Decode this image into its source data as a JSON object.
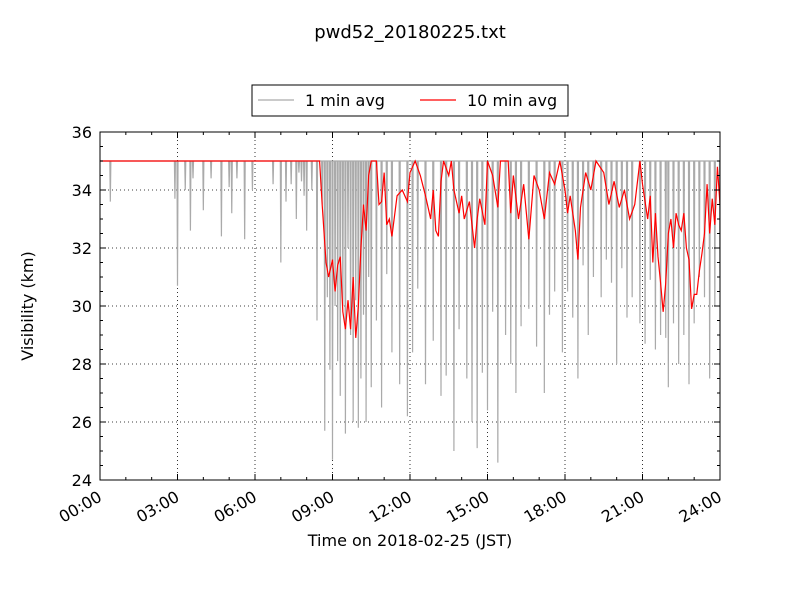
{
  "chart_data": {
    "type": "line",
    "title": "pwd52_20180225.txt",
    "xlabel": "Time on 2018-02-25 (JST)",
    "ylabel": "Visibility (km)",
    "xlim": [
      0,
      24
    ],
    "ylim": [
      24,
      36
    ],
    "x_ticks": [
      {
        "value": 0,
        "label": "00:00"
      },
      {
        "value": 3,
        "label": "03:00"
      },
      {
        "value": 6,
        "label": "06:00"
      },
      {
        "value": 9,
        "label": "09:00"
      },
      {
        "value": 12,
        "label": "12:00"
      },
      {
        "value": 15,
        "label": "15:00"
      },
      {
        "value": 18,
        "label": "18:00"
      },
      {
        "value": 21,
        "label": "21:00"
      },
      {
        "value": 24,
        "label": "24:00"
      }
    ],
    "y_ticks": [
      {
        "value": 24,
        "label": "24"
      },
      {
        "value": 26,
        "label": "26"
      },
      {
        "value": 28,
        "label": "28"
      },
      {
        "value": 30,
        "label": "30"
      },
      {
        "value": 32,
        "label": "32"
      },
      {
        "value": 34,
        "label": "34"
      },
      {
        "value": 36,
        "label": "36"
      }
    ],
    "grid": true,
    "legend": {
      "placement": "top-center-outside",
      "columns": 2
    },
    "series": [
      {
        "name": "1 min avg",
        "color": "#aaaaaa",
        "dips": [
          [
            0.4,
            33.6
          ],
          [
            2.9,
            33.7
          ],
          [
            3.0,
            30.7
          ],
          [
            3.3,
            34.0
          ],
          [
            3.5,
            32.6
          ],
          [
            3.6,
            34.4
          ],
          [
            4.0,
            33.3
          ],
          [
            4.3,
            34.4
          ],
          [
            4.7,
            32.4
          ],
          [
            5.0,
            34.1
          ],
          [
            5.1,
            33.2
          ],
          [
            5.3,
            34.4
          ],
          [
            5.6,
            32.3
          ],
          [
            5.9,
            34.0
          ],
          [
            6.7,
            34.2
          ],
          [
            7.0,
            31.5
          ],
          [
            7.2,
            33.6
          ],
          [
            7.4,
            34.2
          ],
          [
            7.6,
            33.0
          ],
          [
            7.7,
            34.6
          ],
          [
            7.8,
            34.3
          ],
          [
            7.9,
            33.8
          ],
          [
            8.0,
            32.6
          ],
          [
            8.2,
            34.0
          ],
          [
            8.4,
            29.5
          ],
          [
            8.6,
            33.5
          ],
          [
            8.7,
            25.7
          ],
          [
            8.8,
            30.3
          ],
          [
            8.9,
            27.8
          ],
          [
            9.0,
            24.7
          ],
          [
            9.1,
            30.0
          ],
          [
            9.2,
            28.1
          ],
          [
            9.3,
            26.9
          ],
          [
            9.4,
            30.0
          ],
          [
            9.5,
            25.6
          ],
          [
            9.6,
            32.0
          ],
          [
            9.7,
            29.0
          ],
          [
            9.8,
            26.0
          ],
          [
            9.9,
            30.2
          ],
          [
            10.0,
            25.8
          ],
          [
            10.1,
            27.5
          ],
          [
            10.2,
            29.7
          ],
          [
            10.3,
            26.0
          ],
          [
            10.4,
            31.0
          ],
          [
            10.5,
            27.2
          ],
          [
            10.7,
            29.5
          ],
          [
            10.9,
            26.5
          ],
          [
            11.1,
            31.1
          ],
          [
            11.3,
            28.4
          ],
          [
            11.6,
            27.3
          ],
          [
            11.9,
            26.2
          ],
          [
            12.1,
            28.4
          ],
          [
            12.3,
            30.6
          ],
          [
            12.6,
            27.3
          ],
          [
            12.9,
            28.8
          ],
          [
            13.2,
            26.9
          ],
          [
            13.4,
            27.6
          ],
          [
            13.7,
            25.0
          ],
          [
            13.9,
            29.2
          ],
          [
            14.2,
            27.5
          ],
          [
            14.4,
            26.0
          ],
          [
            14.6,
            25.1
          ],
          [
            14.8,
            27.7
          ],
          [
            15.0,
            26.4
          ],
          [
            15.2,
            29.8
          ],
          [
            15.4,
            24.6
          ],
          [
            15.7,
            29.0
          ],
          [
            15.9,
            28.0
          ],
          [
            16.1,
            27.0
          ],
          [
            16.3,
            29.3
          ],
          [
            16.6,
            29.9
          ],
          [
            16.9,
            28.6
          ],
          [
            17.2,
            27.0
          ],
          [
            17.4,
            29.7
          ],
          [
            17.6,
            30.5
          ],
          [
            17.9,
            28.4
          ],
          [
            18.1,
            30.5
          ],
          [
            18.3,
            29.6
          ],
          [
            18.5,
            27.5
          ],
          [
            18.7,
            31.4
          ],
          [
            18.9,
            29.0
          ],
          [
            19.1,
            31.0
          ],
          [
            19.4,
            30.3
          ],
          [
            19.6,
            31.6
          ],
          [
            19.8,
            30.8
          ],
          [
            20.0,
            28.0
          ],
          [
            20.2,
            31.3
          ],
          [
            20.4,
            29.6
          ],
          [
            20.6,
            30.3
          ],
          [
            20.9,
            29.4
          ],
          [
            21.1,
            28.7
          ],
          [
            21.3,
            30.9
          ],
          [
            21.5,
            28.5
          ],
          [
            21.7,
            29.0
          ],
          [
            21.9,
            28.9
          ],
          [
            22.0,
            27.2
          ],
          [
            22.2,
            29.4
          ],
          [
            22.4,
            28.0
          ],
          [
            22.6,
            29.0
          ],
          [
            22.8,
            27.3
          ],
          [
            23.0,
            29.4
          ],
          [
            23.2,
            31.0
          ],
          [
            23.4,
            30.3
          ],
          [
            23.6,
            27.5
          ],
          [
            23.8,
            30.0
          ],
          [
            24.0,
            31.0
          ]
        ]
      },
      {
        "name": "10 min avg",
        "color": "#ff0000",
        "points": [
          [
            0,
            35.0
          ],
          [
            8.5,
            35.0
          ],
          [
            8.6,
            33.5
          ],
          [
            8.75,
            31.5
          ],
          [
            8.85,
            31.0
          ],
          [
            9.0,
            31.6
          ],
          [
            9.1,
            30.5
          ],
          [
            9.2,
            31.4
          ],
          [
            9.3,
            31.7
          ],
          [
            9.4,
            29.8
          ],
          [
            9.5,
            29.2
          ],
          [
            9.6,
            30.2
          ],
          [
            9.7,
            29.2
          ],
          [
            9.8,
            31.0
          ],
          [
            9.9,
            28.9
          ],
          [
            10.0,
            30.0
          ],
          [
            10.1,
            32.0
          ],
          [
            10.2,
            33.5
          ],
          [
            10.3,
            32.6
          ],
          [
            10.4,
            34.5
          ],
          [
            10.5,
            35.0
          ],
          [
            10.7,
            35.0
          ],
          [
            10.8,
            33.5
          ],
          [
            10.9,
            33.6
          ],
          [
            11.0,
            34.6
          ],
          [
            11.1,
            32.8
          ],
          [
            11.2,
            33.0
          ],
          [
            11.3,
            32.4
          ],
          [
            11.5,
            33.8
          ],
          [
            11.7,
            34.0
          ],
          [
            11.9,
            33.6
          ],
          [
            12.0,
            34.6
          ],
          [
            12.2,
            35.0
          ],
          [
            12.4,
            34.5
          ],
          [
            12.6,
            33.8
          ],
          [
            12.8,
            33.0
          ],
          [
            12.9,
            34.0
          ],
          [
            13.0,
            32.6
          ],
          [
            13.1,
            32.4
          ],
          [
            13.2,
            34.3
          ],
          [
            13.3,
            35.0
          ],
          [
            13.5,
            34.5
          ],
          [
            13.6,
            35.0
          ],
          [
            13.7,
            34.0
          ],
          [
            13.9,
            33.2
          ],
          [
            14.0,
            33.8
          ],
          [
            14.1,
            33.0
          ],
          [
            14.3,
            33.6
          ],
          [
            14.5,
            32.0
          ],
          [
            14.6,
            33.0
          ],
          [
            14.7,
            33.7
          ],
          [
            14.9,
            32.8
          ],
          [
            15.0,
            35.0
          ],
          [
            15.2,
            34.5
          ],
          [
            15.4,
            33.4
          ],
          [
            15.5,
            35.0
          ],
          [
            15.8,
            35.0
          ],
          [
            15.9,
            33.2
          ],
          [
            16.0,
            34.5
          ],
          [
            16.2,
            33.0
          ],
          [
            16.4,
            34.2
          ],
          [
            16.6,
            32.3
          ],
          [
            16.8,
            34.5
          ],
          [
            17.0,
            34.0
          ],
          [
            17.2,
            33.0
          ],
          [
            17.4,
            34.6
          ],
          [
            17.6,
            34.2
          ],
          [
            17.8,
            35.0
          ],
          [
            18.0,
            34.0
          ],
          [
            18.1,
            33.2
          ],
          [
            18.2,
            33.8
          ],
          [
            18.4,
            32.6
          ],
          [
            18.5,
            31.6
          ],
          [
            18.6,
            33.4
          ],
          [
            18.8,
            34.6
          ],
          [
            19.0,
            34.0
          ],
          [
            19.2,
            35.0
          ],
          [
            19.5,
            34.6
          ],
          [
            19.7,
            33.5
          ],
          [
            19.9,
            34.3
          ],
          [
            20.1,
            33.4
          ],
          [
            20.3,
            34.0
          ],
          [
            20.5,
            33.0
          ],
          [
            20.7,
            33.5
          ],
          [
            20.9,
            35.0
          ],
          [
            21.0,
            34.2
          ],
          [
            21.2,
            33.0
          ],
          [
            21.3,
            33.8
          ],
          [
            21.4,
            31.5
          ],
          [
            21.5,
            33.2
          ],
          [
            21.6,
            31.7
          ],
          [
            21.7,
            30.8
          ],
          [
            21.8,
            29.8
          ],
          [
            21.9,
            30.8
          ],
          [
            22.0,
            32.5
          ],
          [
            22.1,
            33.0
          ],
          [
            22.2,
            32.0
          ],
          [
            22.3,
            33.2
          ],
          [
            22.4,
            32.8
          ],
          [
            22.5,
            32.6
          ],
          [
            22.6,
            33.2
          ],
          [
            22.7,
            32.0
          ],
          [
            22.8,
            31.6
          ],
          [
            22.9,
            29.9
          ],
          [
            23.0,
            30.4
          ],
          [
            23.1,
            30.4
          ],
          [
            23.2,
            31.2
          ],
          [
            23.3,
            31.8
          ],
          [
            23.4,
            32.5
          ],
          [
            23.5,
            34.2
          ],
          [
            23.6,
            32.5
          ],
          [
            23.7,
            33.7
          ],
          [
            23.8,
            32.8
          ],
          [
            23.9,
            34.8
          ],
          [
            24.0,
            33.5
          ]
        ]
      }
    ]
  }
}
